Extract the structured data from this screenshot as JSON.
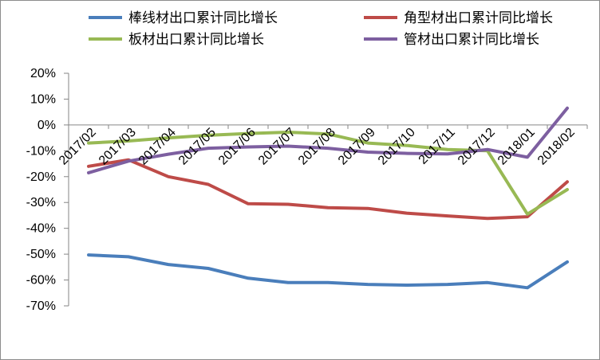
{
  "chart_data": {
    "type": "line",
    "categories": [
      "2017/02",
      "2017/03",
      "2017/04",
      "2017/05",
      "2017/06",
      "2017/07",
      "2017/08",
      "2017/09",
      "2017/10",
      "2017/11",
      "2017/12",
      "2018/01",
      "2018/02"
    ],
    "y_ticks": [
      "20%",
      "10%",
      "0%",
      "-10%",
      "-20%",
      "-30%",
      "-40%",
      "-50%",
      "-60%",
      "-70%"
    ],
    "ylim": [
      -70,
      20
    ],
    "unit": "%",
    "grid": false,
    "legend_position": "top",
    "series": [
      {
        "name": "棒线材出口累计同比增长",
        "color": "#4a7ebb",
        "values": [
          -50.3,
          -51.0,
          -54.0,
          -55.5,
          -59.3,
          -61.0,
          -61.0,
          -61.7,
          -62.0,
          -61.7,
          -61.0,
          -63.0,
          -53.0
        ]
      },
      {
        "name": "角型材出口累计同比增长",
        "color": "#be4b48",
        "values": [
          -16.0,
          -13.5,
          -20.0,
          -23.0,
          -30.5,
          -30.7,
          -32.0,
          -32.3,
          -34.2,
          -35.2,
          -36.2,
          -35.5,
          -22.0
        ]
      },
      {
        "name": "板材出口累计同比增长",
        "color": "#98b954",
        "values": [
          -7.0,
          -6.2,
          -5.0,
          -4.0,
          -3.3,
          -2.8,
          -3.5,
          -7.0,
          -8.0,
          -9.5,
          -10.0,
          -34.5,
          -25.0
        ]
      },
      {
        "name": "管材出口累计同比增长",
        "color": "#7d5fa0",
        "values": [
          -18.5,
          -14.0,
          -11.3,
          -9.0,
          -8.5,
          -8.2,
          -9.0,
          -10.5,
          -11.0,
          -11.2,
          -9.5,
          -12.5,
          6.5
        ]
      }
    ]
  }
}
